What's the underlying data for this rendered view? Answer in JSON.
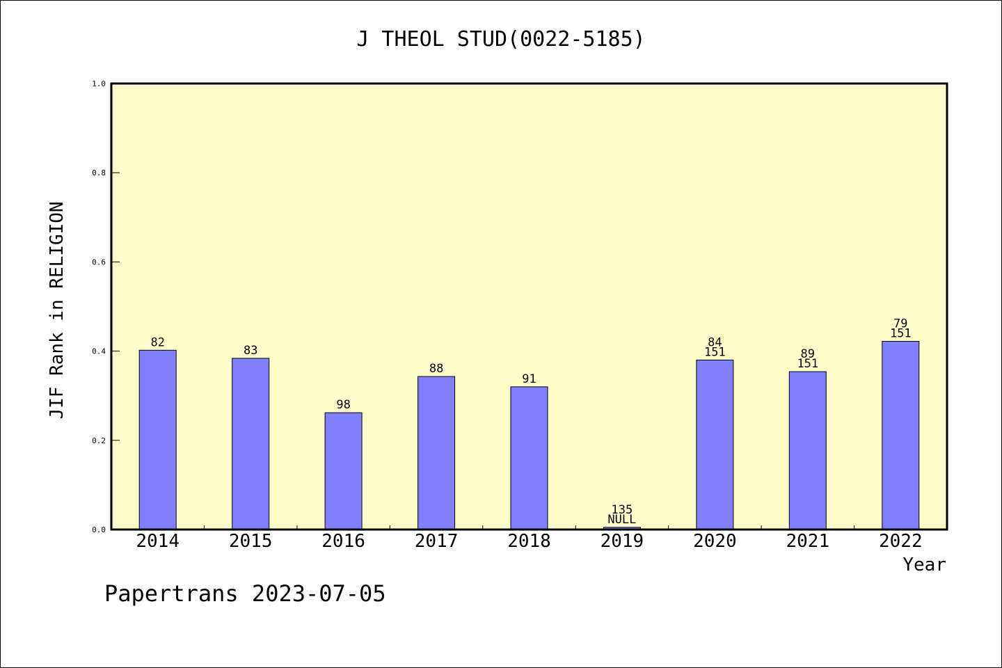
{
  "chart_data": {
    "type": "bar",
    "title": "J THEOL STUD(0022-5185)",
    "xlabel": "Year",
    "ylabel": "JIF Rank in RELIGION",
    "categories": [
      "2014",
      "2015",
      "2016",
      "2017",
      "2018",
      "2019",
      "2020",
      "2021",
      "2022"
    ],
    "values": [
      0.402,
      0.384,
      0.262,
      0.343,
      0.32,
      0.005,
      0.38,
      0.354,
      0.422
    ],
    "bar_labels": [
      [
        "82"
      ],
      [
        "83"
      ],
      [
        "98"
      ],
      [
        "88"
      ],
      [
        "91"
      ],
      [
        "135",
        "NULL"
      ],
      [
        "84",
        "151"
      ],
      [
        "89",
        "151"
      ],
      [
        "79",
        "151"
      ]
    ],
    "ylim": [
      0,
      1.0
    ],
    "yticks": [
      "0.0",
      "0.2",
      "0.4",
      "0.6",
      "0.8",
      "1.0"
    ],
    "grid": false,
    "footer": "Papertrans 2023-07-05",
    "colors": {
      "plot_background": "#ffffcc",
      "bar_fill": "#8080ff",
      "bar_stroke": "#000000",
      "axis": "#000000"
    }
  }
}
